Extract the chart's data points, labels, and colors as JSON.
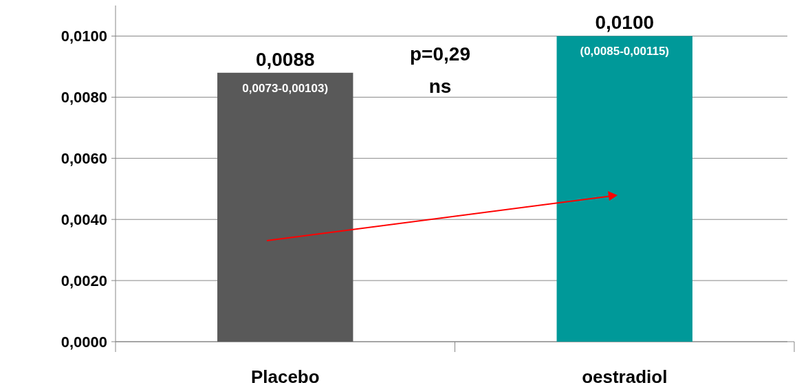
{
  "chart_data": {
    "type": "bar",
    "categories": [
      "Placebo",
      "oestradiol"
    ],
    "values": [
      0.0088,
      0.01
    ],
    "colors": [
      "#595959",
      "#009999"
    ],
    "value_labels": [
      "0,0088",
      "0,0100"
    ],
    "ylim": [
      0,
      0.011
    ],
    "yticks": [
      {
        "value": 0,
        "label": "0,0000"
      },
      {
        "value": 0.002,
        "label": "0,0020"
      },
      {
        "value": 0.004,
        "label": "0,0040"
      },
      {
        "value": 0.006,
        "label": "0,0060"
      },
      {
        "value": 0.008,
        "label": "0,0080"
      },
      {
        "value": 0.01,
        "label": "0,0100"
      }
    ],
    "grid": "y",
    "annotations": [
      "0,0073-0,00103)",
      "(0,0085-0,00115)",
      "p=0,29",
      "ns"
    ]
  }
}
